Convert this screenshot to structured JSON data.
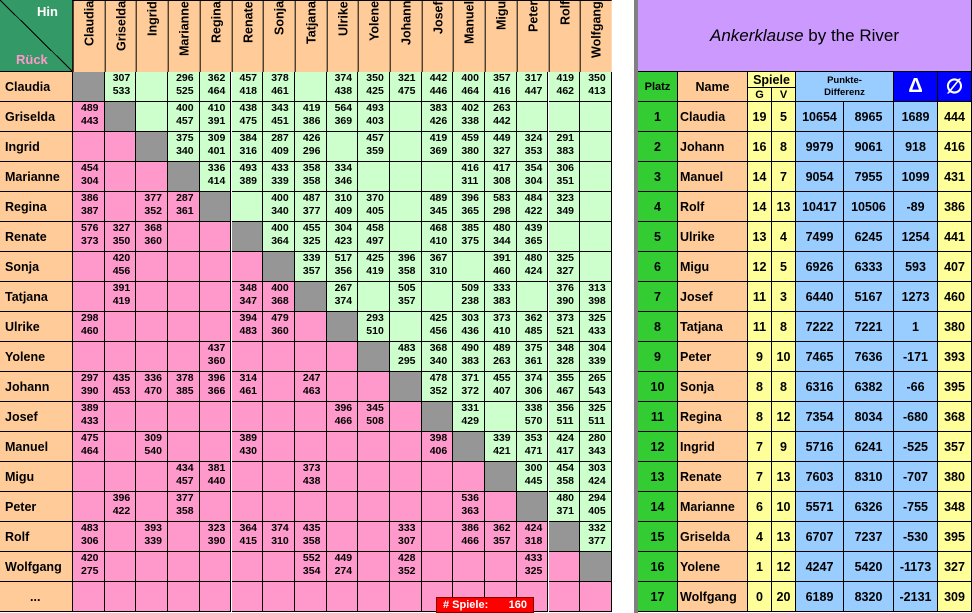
{
  "corner": {
    "hin": "Hin",
    "rueck": "Rück"
  },
  "players": [
    "Claudia",
    "Griselda",
    "Ingrid",
    "Marianne",
    "Regina",
    "Renate",
    "Sonja",
    "Tatjana",
    "Ulrike",
    "Yolene",
    "Johann",
    "Josef",
    "Manuel",
    "Migu",
    "Peter",
    "Rolf",
    "Wolfgang"
  ],
  "more_rows": "...",
  "games_label": "# Spiele:",
  "games_count": "160",
  "matrix": [
    [
      null,
      [
        "307",
        "533"
      ],
      null,
      [
        "296",
        "525"
      ],
      [
        "362",
        "464"
      ],
      [
        "457",
        "418"
      ],
      [
        "378",
        "461"
      ],
      null,
      [
        "374",
        "438"
      ],
      [
        "350",
        "425"
      ],
      [
        "321",
        "475"
      ],
      [
        "442",
        "446"
      ],
      [
        "400",
        "464"
      ],
      [
        "357",
        "416"
      ],
      [
        "317",
        "447"
      ],
      [
        "419",
        "462"
      ],
      [
        "350",
        "413"
      ]
    ],
    [
      [
        "489",
        "443"
      ],
      null,
      null,
      [
        "400",
        "457"
      ],
      [
        "410",
        "391"
      ],
      [
        "438",
        "475"
      ],
      [
        "343",
        "451"
      ],
      [
        "419",
        "386"
      ],
      [
        "564",
        "369"
      ],
      [
        "493",
        "403"
      ],
      null,
      [
        "383",
        "426"
      ],
      [
        "402",
        "338"
      ],
      [
        "263",
        "442"
      ],
      null,
      null,
      null
    ],
    [
      null,
      null,
      null,
      [
        "375",
        "340"
      ],
      [
        "309",
        "401"
      ],
      [
        "384",
        "316"
      ],
      [
        "287",
        "409"
      ],
      [
        "426",
        "296"
      ],
      null,
      [
        "457",
        "359"
      ],
      null,
      [
        "419",
        "369"
      ],
      [
        "459",
        "380",
        "r"
      ],
      [
        "449",
        "327"
      ],
      [
        "324",
        "353"
      ],
      [
        "291",
        "383"
      ],
      null
    ],
    [
      [
        "454",
        "304",
        "r"
      ],
      null,
      null,
      null,
      [
        "336",
        "414"
      ],
      [
        "493",
        "389"
      ],
      [
        "433",
        "339"
      ],
      [
        "358",
        "358"
      ],
      [
        "334",
        "346"
      ],
      null,
      null,
      null,
      [
        "416",
        "311"
      ],
      [
        "417",
        "308"
      ],
      [
        "354",
        "304"
      ],
      [
        "306",
        "351",
        "r"
      ],
      null
    ],
    [
      [
        "386",
        "387"
      ],
      null,
      [
        "377",
        "352"
      ],
      [
        "287",
        "361"
      ],
      null,
      null,
      [
        "400",
        "340"
      ],
      [
        "487",
        "377"
      ],
      [
        "310",
        "409"
      ],
      [
        "370",
        "405"
      ],
      null,
      [
        "489",
        "345"
      ],
      [
        "396",
        "365"
      ],
      [
        "583",
        "298"
      ],
      [
        "484",
        "422"
      ],
      [
        "323",
        "349"
      ],
      null
    ],
    [
      [
        "576",
        "373"
      ],
      [
        "327",
        "350"
      ],
      [
        "368",
        "360",
        "b"
      ],
      null,
      null,
      null,
      [
        "400",
        "364"
      ],
      [
        "455",
        "325"
      ],
      [
        "304",
        "423"
      ],
      [
        "458",
        "497"
      ],
      null,
      [
        "468",
        "410"
      ],
      [
        "385",
        "375"
      ],
      [
        "480",
        "344"
      ],
      [
        "439",
        "365"
      ],
      null,
      null
    ],
    [
      null,
      [
        "420",
        "456"
      ],
      null,
      null,
      null,
      null,
      null,
      [
        "339",
        "357"
      ],
      [
        "517",
        "356"
      ],
      [
        "425",
        "419"
      ],
      [
        "396",
        "358"
      ],
      [
        "367",
        "310"
      ],
      null,
      [
        "391",
        "460"
      ],
      [
        "480",
        "424"
      ],
      [
        "325",
        "327"
      ],
      null
    ],
    [
      null,
      [
        "391",
        "419"
      ],
      null,
      null,
      null,
      [
        "348",
        "347"
      ],
      [
        "400",
        "368"
      ],
      null,
      [
        "267",
        "374"
      ],
      null,
      [
        "505",
        "357"
      ],
      null,
      [
        "509",
        "238"
      ],
      [
        "333",
        "383"
      ],
      null,
      [
        "376",
        "390"
      ],
      [
        "313",
        "398"
      ]
    ],
    [
      [
        "298",
        "460",
        "b"
      ],
      null,
      null,
      null,
      null,
      [
        "394",
        "483"
      ],
      [
        "479",
        "360",
        "b"
      ],
      null,
      null,
      [
        "293",
        "510",
        "r"
      ],
      null,
      [
        "425",
        "456"
      ],
      [
        "303",
        "436"
      ],
      [
        "373",
        "410"
      ],
      [
        "362",
        "485"
      ],
      [
        "373",
        "521"
      ],
      [
        "325",
        "433"
      ]
    ],
    [
      null,
      null,
      null,
      null,
      [
        "437",
        "360"
      ],
      null,
      null,
      null,
      null,
      null,
      [
        "483",
        "295"
      ],
      [
        "368",
        "340"
      ],
      [
        "490",
        "383"
      ],
      [
        "489",
        "263"
      ],
      [
        "375",
        "361"
      ],
      [
        "348",
        "328"
      ],
      [
        "304",
        "339"
      ]
    ],
    [
      [
        "297",
        "390"
      ],
      [
        "435",
        "453"
      ],
      [
        "336",
        "470"
      ],
      [
        "378",
        "385",
        "r"
      ],
      [
        "396",
        "366"
      ],
      [
        "314",
        "461"
      ],
      null,
      [
        "247",
        "463"
      ],
      null,
      null,
      null,
      [
        "478",
        "352"
      ],
      [
        "371",
        "372"
      ],
      [
        "455",
        "407",
        "b"
      ],
      [
        "374",
        "306"
      ],
      [
        "355",
        "467"
      ],
      [
        "265",
        "543"
      ]
    ],
    [
      [
        "389",
        "433",
        "r"
      ],
      null,
      null,
      null,
      null,
      null,
      null,
      null,
      [
        "396",
        "466",
        "r"
      ],
      [
        "345",
        "508"
      ],
      null,
      null,
      [
        "331",
        "429"
      ],
      null,
      [
        "338",
        "570",
        "r"
      ],
      [
        "356",
        "511"
      ],
      [
        "325",
        "511"
      ]
    ],
    [
      [
        "475",
        "464"
      ],
      null,
      [
        "309",
        "540"
      ],
      null,
      null,
      [
        "389",
        "430"
      ],
      null,
      null,
      null,
      null,
      null,
      [
        "398",
        "406",
        "r"
      ],
      null,
      [
        "339",
        "421"
      ],
      [
        "353",
        "471"
      ],
      [
        "424",
        "417"
      ],
      [
        "280",
        "343"
      ]
    ],
    [
      null,
      null,
      null,
      [
        "434",
        "457"
      ],
      [
        "381",
        "440"
      ],
      null,
      null,
      [
        "373",
        "438",
        "b"
      ],
      null,
      null,
      null,
      null,
      null,
      null,
      [
        "300",
        "445"
      ],
      [
        "454",
        "358"
      ],
      [
        "303",
        "424",
        "r"
      ]
    ],
    [
      null,
      [
        "396",
        "422"
      ],
      null,
      [
        "377",
        "358"
      ],
      null,
      null,
      null,
      null,
      null,
      null,
      null,
      null,
      [
        "536",
        "363",
        "r"
      ],
      null,
      null,
      [
        "480",
        "371"
      ],
      [
        "294",
        "405"
      ]
    ],
    [
      [
        "483",
        "306"
      ],
      null,
      [
        "393",
        "339",
        "r"
      ],
      null,
      [
        "323",
        "390"
      ],
      [
        "364",
        "415"
      ],
      [
        "374",
        "310",
        "r"
      ],
      [
        "435",
        "358"
      ],
      null,
      null,
      [
        "333",
        "307"
      ],
      null,
      [
        "386",
        "466",
        "r"
      ],
      [
        "362",
        "357"
      ],
      [
        "424",
        "318"
      ],
      null,
      [
        "332",
        "377"
      ]
    ],
    [
      [
        "420",
        "275"
      ],
      null,
      null,
      null,
      null,
      null,
      null,
      [
        "552",
        "354"
      ],
      [
        "449",
        "274"
      ],
      null,
      [
        "428",
        "352"
      ],
      null,
      null,
      null,
      [
        "433",
        "325"
      ],
      null,
      null
    ]
  ],
  "title": {
    "italic": "Ankerklause",
    "rest": " by the River"
  },
  "headers": {
    "platz": "Platz",
    "name": "Name",
    "spiele": "Spiele",
    "g": "G",
    "v": "V",
    "punkte": "Punkte-\nDifferenz",
    "delta": "Δ",
    "avg": "∅"
  },
  "ranking": [
    [
      "1",
      "Claudia",
      "19",
      "5",
      "10654",
      "8965",
      "1689",
      "444"
    ],
    [
      "2",
      "Johann",
      "16",
      "8",
      "9979",
      "9061",
      "918",
      "416"
    ],
    [
      "3",
      "Manuel",
      "14",
      "7",
      "9054",
      "7955",
      "1099",
      "431"
    ],
    [
      "4",
      "Rolf",
      "14",
      "13",
      "10417",
      "10506",
      "-89",
      "386"
    ],
    [
      "5",
      "Ulrike",
      "13",
      "4",
      "7499",
      "6245",
      "1254",
      "441"
    ],
    [
      "6",
      "Migu",
      "12",
      "5",
      "6926",
      "6333",
      "593",
      "407"
    ],
    [
      "7",
      "Josef",
      "11",
      "3",
      "6440",
      "5167",
      "1273",
      "460"
    ],
    [
      "8",
      "Tatjana",
      "11",
      "8",
      "7222",
      "7221",
      "1",
      "380"
    ],
    [
      "9",
      "Peter",
      "9",
      "10",
      "7465",
      "7636",
      "-171",
      "393"
    ],
    [
      "10",
      "Sonja",
      "8",
      "8",
      "6316",
      "6382",
      "-66",
      "395"
    ],
    [
      "11",
      "Regina",
      "8",
      "12",
      "7354",
      "8034",
      "-680",
      "368"
    ],
    [
      "12",
      "Ingrid",
      "7",
      "9",
      "5716",
      "6241",
      "-525",
      "357"
    ],
    [
      "13",
      "Renate",
      "7",
      "13",
      "7603",
      "8310",
      "-707",
      "380"
    ],
    [
      "14",
      "Marianne",
      "6",
      "10",
      "5571",
      "6326",
      "-755",
      "348"
    ],
    [
      "15",
      "Griselda",
      "4",
      "13",
      "6707",
      "7237",
      "-530",
      "395"
    ],
    [
      "16",
      "Yolene",
      "1",
      "12",
      "4247",
      "5420",
      "-1173",
      "327"
    ],
    [
      "17",
      "Wolfgang",
      "0",
      "20",
      "6189",
      "8320",
      "-2131",
      "309"
    ]
  ],
  "colors": {
    "upper": "#ccffcc",
    "lower": "#ff99cc",
    "diag": "#969696",
    "header": "#ffcc99",
    "corner": "#339966",
    "title": "#cc99ff",
    "platz": "#33cc33",
    "blue": "#99ccff",
    "yellow": "#ffff99",
    "deltaHead": "#0000ff"
  }
}
